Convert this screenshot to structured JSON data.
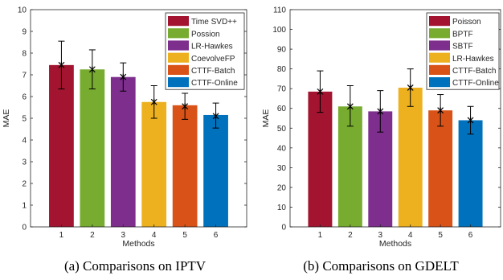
{
  "chart_data": [
    {
      "type": "bar",
      "caption": "(a) Comparisons on IPTV",
      "xlabel": "Methods",
      "ylabel": "MAE",
      "categories": [
        "1",
        "2",
        "3",
        "4",
        "5",
        "6"
      ],
      "ylim": [
        0,
        10
      ],
      "yticks": [
        "0",
        "1",
        "2",
        "3",
        "4",
        "5",
        "6",
        "7",
        "8",
        "9",
        "10"
      ],
      "series": [
        {
          "name": "Time SVD++",
          "color": "#a2142f"
        },
        {
          "name": "Possion",
          "color": "#77ac30"
        },
        {
          "name": "LR-Hawkes",
          "color": "#7e2f8e"
        },
        {
          "name": "CoevolveFP",
          "color": "#edb120"
        },
        {
          "name": "CTTF-Batch",
          "color": "#d95319"
        },
        {
          "name": "CTTF-Online",
          "color": "#0072bd"
        }
      ],
      "values": [
        7.45,
        7.25,
        6.9,
        5.75,
        5.6,
        5.15
      ],
      "error_mean": [
        7.45,
        7.25,
        6.9,
        5.75,
        5.55,
        5.1
      ],
      "error_low": [
        6.35,
        6.35,
        6.25,
        5.0,
        4.95,
        4.55
      ],
      "error_high": [
        8.55,
        8.15,
        7.55,
        6.5,
        6.15,
        5.7
      ],
      "legend_position": "top-right",
      "grid": false
    },
    {
      "type": "bar",
      "caption": "(b) Comparisons on GDELT",
      "xlabel": "Methods",
      "ylabel": "MAE",
      "categories": [
        "1",
        "2",
        "3",
        "4",
        "5",
        "6"
      ],
      "ylim": [
        0,
        110
      ],
      "yticks": [
        "0",
        "10",
        "20",
        "30",
        "40",
        "50",
        "60",
        "70",
        "80",
        "90",
        "100",
        "110"
      ],
      "series": [
        {
          "name": "Poisson",
          "color": "#a2142f"
        },
        {
          "name": "BPTF",
          "color": "#77ac30"
        },
        {
          "name": "SBTF",
          "color": "#7e2f8e"
        },
        {
          "name": "LR-Hawkes",
          "color": "#edb120"
        },
        {
          "name": "CTTF-Batch",
          "color": "#d95319"
        },
        {
          "name": "CTTF-Online",
          "color": "#0072bd"
        }
      ],
      "values": [
        68.5,
        61,
        58.5,
        70.5,
        59,
        54
      ],
      "error_mean": [
        68.5,
        61,
        58.5,
        70.5,
        59,
        54
      ],
      "error_low": [
        58,
        51,
        48,
        61,
        51,
        47
      ],
      "error_high": [
        79,
        71.5,
        69,
        80,
        67,
        61
      ],
      "legend_position": "top-right",
      "grid": false
    }
  ]
}
